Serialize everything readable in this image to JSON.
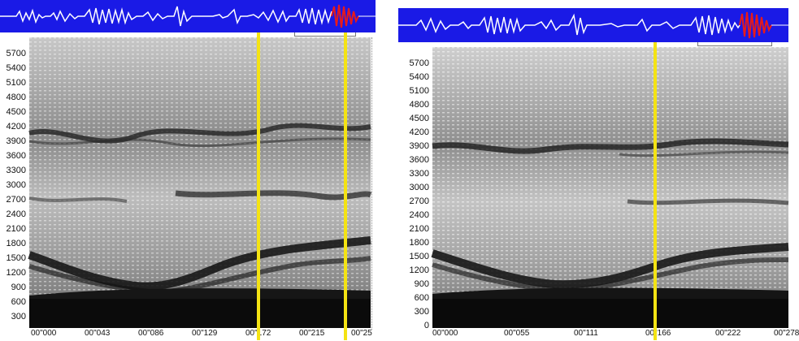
{
  "colors": {
    "waveform_bg": "#1a1ae6",
    "waveform_trace": "#ffffff",
    "waveform_highlight": "#e81a1a",
    "cursor": "#f4e313"
  },
  "left": {
    "y_ticks": [
      "5700",
      "5400",
      "5100",
      "4800",
      "4500",
      "4200",
      "3900",
      "3600",
      "3300",
      "3000",
      "2700",
      "2400",
      "2100",
      "1800",
      "1500",
      "1200",
      "900",
      "600",
      "300"
    ],
    "x_ticks": [
      "00\"000",
      "00\"043",
      "00\"086",
      "00\"129",
      "00\"172",
      "00\"215",
      "00\"25"
    ]
  },
  "right": {
    "y_ticks": [
      "5700",
      "5400",
      "5100",
      "4800",
      "4500",
      "4200",
      "3900",
      "3600",
      "3300",
      "3000",
      "2700",
      "2400",
      "2100",
      "1800",
      "1500",
      "1200",
      "900",
      "600",
      "300",
      "0"
    ],
    "x_ticks": [
      "00\"000",
      "00\"055",
      "00\"111",
      "00\"166",
      "00\"222",
      "00\"278"
    ]
  }
}
